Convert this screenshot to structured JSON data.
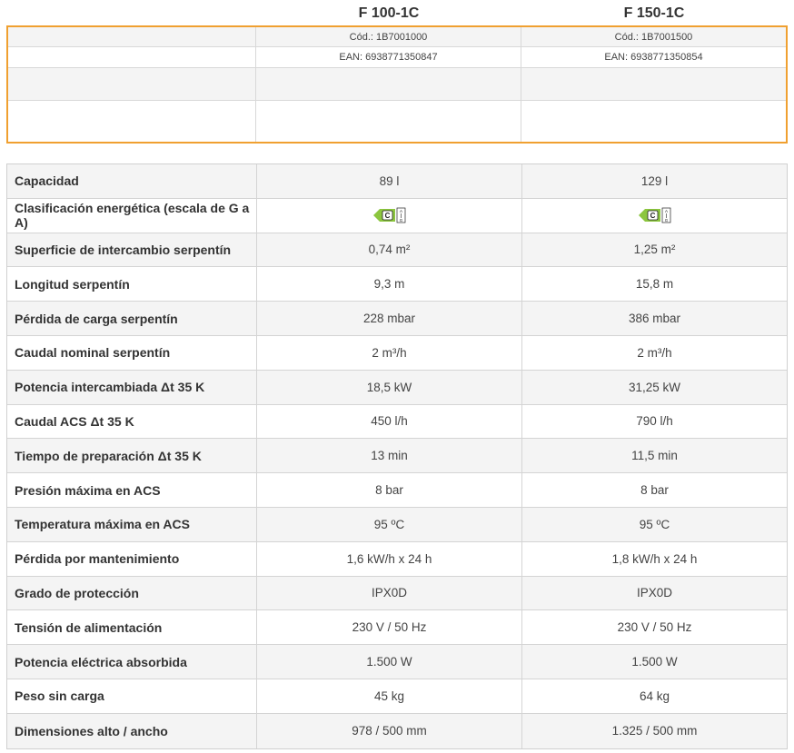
{
  "models": [
    {
      "name": "F 100-1C",
      "code": "Cód.: 1B7001000",
      "ean": "EAN: 6938771350847"
    },
    {
      "name": "F 150-1C",
      "code": "Cód.: 1B7001500",
      "ean": "EAN: 6938771350854"
    }
  ],
  "specs": [
    {
      "label": "Capacidad",
      "v1": "89 l",
      "v2": "129 l"
    },
    {
      "label": "Clasificación energética (escala de G a A)",
      "v1": "C",
      "v2": "C",
      "energy": true
    },
    {
      "label": "Superficie de intercambio serpentín",
      "v1": "0,74 m²",
      "v2": "1,25 m²"
    },
    {
      "label": "Longitud serpentín",
      "v1": "9,3 m",
      "v2": "15,8 m"
    },
    {
      "label": "Pérdida de carga serpentín",
      "v1": "228 mbar",
      "v2": "386 mbar"
    },
    {
      "label": "Caudal nominal serpentín",
      "v1": "2 m³/h",
      "v2": "2 m³/h"
    },
    {
      "label": "Potencia intercambiada Δt 35 K",
      "v1": "18,5 kW",
      "v2": "31,25 kW"
    },
    {
      "label": "Caudal ACS Δt 35 K",
      "v1": "450 l/h",
      "v2": "790 l/h"
    },
    {
      "label": "Tiempo de preparación Δt 35 K",
      "v1": "13 min",
      "v2": "11,5 min"
    },
    {
      "label": "Presión máxima en ACS",
      "v1": "8 bar",
      "v2": "8 bar"
    },
    {
      "label": "Temperatura máxima en ACS",
      "v1": "95 ºC",
      "v2": "95 ºC"
    },
    {
      "label": "Pérdida por mantenimiento",
      "v1": "1,6 kW/h x 24 h",
      "v2": "1,8 kW/h x 24 h"
    },
    {
      "label": "Grado de protección",
      "v1": "IPX0D",
      "v2": "IPX0D"
    },
    {
      "label": "Tensión de alimentación",
      "v1": "230 V / 50 Hz",
      "v2": "230 V / 50 Hz"
    },
    {
      "label": "Potencia eléctrica absorbida",
      "v1": "1.500 W",
      "v2": "1.500 W"
    },
    {
      "label": "Peso sin carga",
      "v1": "45 kg",
      "v2": "64 kg"
    },
    {
      "label": "Dimensiones alto / ancho",
      "v1": "978 / 500 mm",
      "v2": "1.325 / 500 mm"
    }
  ],
  "energy_scale": {
    "top": "A",
    "bottom": "G"
  },
  "colors": {
    "accent_border": "#f0a030",
    "energy_green": "#8cc63f",
    "row_alt": "#f4f4f4"
  },
  "icons": [
    "energy-label-icon"
  ]
}
